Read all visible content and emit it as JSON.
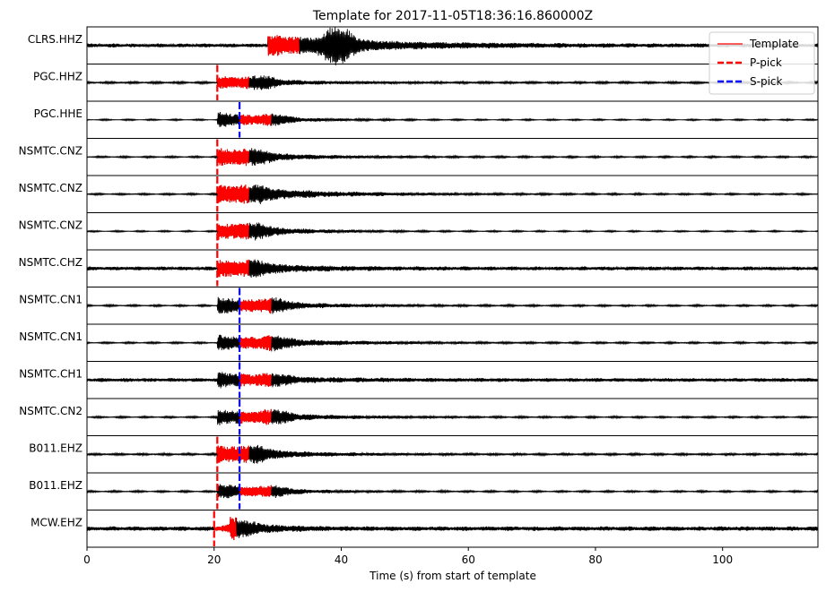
{
  "chart_data": {
    "type": "line",
    "title": "Template for 2017-11-05T18:36:16.860000Z",
    "xlabel": "Time (s) from start of template",
    "ylabel": "",
    "xlim": [
      0,
      115
    ],
    "x_ticks": [
      0,
      20,
      40,
      60,
      80,
      100
    ],
    "grid": false,
    "legend_position": "top-right",
    "legend": [
      {
        "label": "Template",
        "color": "#ff0000",
        "style": "solid"
      },
      {
        "label": "P-pick",
        "color": "#ff0000",
        "style": "dashed"
      },
      {
        "label": "S-pick",
        "color": "#0000ff",
        "style": "dashed"
      }
    ],
    "colors": {
      "waveform": "#000000",
      "template": "#ff0000",
      "p_pick": "#ff0000",
      "s_pick": "#0000ff"
    },
    "traces": [
      {
        "name": "CLRS.HHZ",
        "template_start": 28.4,
        "template_end": 33.4,
        "p_pick": null,
        "s_pick": null,
        "onset": 28.4,
        "noise": 0.1,
        "peak": 0.55,
        "decay": 16,
        "coda_peak": 39.5,
        "coda_amp": 0.9,
        "seed": 1
      },
      {
        "name": "PGC.HHZ",
        "template_start": 20.5,
        "template_end": 25.5,
        "p_pick": 20.5,
        "s_pick": null,
        "onset": 20.5,
        "noise": 0.05,
        "peak": 0.35,
        "decay": 9,
        "coda_peak": 27.5,
        "coda_amp": 0.25,
        "seed": 2
      },
      {
        "name": "PGC.HHE",
        "template_start": 24.0,
        "template_end": 29.0,
        "p_pick": null,
        "s_pick": 24.0,
        "onset": 20.5,
        "noise": 0.03,
        "peak": 0.45,
        "decay": 8,
        "coda_peak": 29.5,
        "coda_amp": 0.2,
        "seed": 3
      },
      {
        "name": "NSMTC.CNZ",
        "template_start": 20.5,
        "template_end": 25.5,
        "p_pick": 20.5,
        "s_pick": null,
        "onset": 20.5,
        "noise": 0.04,
        "peak": 0.5,
        "decay": 9,
        "coda_peak": 26.5,
        "coda_amp": 0.25,
        "seed": 4
      },
      {
        "name": "NSMTC.CNZ",
        "template_start": 20.5,
        "template_end": 25.5,
        "p_pick": 20.5,
        "s_pick": null,
        "onset": 20.5,
        "noise": 0.04,
        "peak": 0.55,
        "decay": 12,
        "coda_peak": 26.5,
        "coda_amp": 0.25,
        "seed": 5
      },
      {
        "name": "NSMTC.CNZ",
        "template_start": 20.5,
        "template_end": 25.5,
        "p_pick": 20.5,
        "s_pick": null,
        "onset": 20.5,
        "noise": 0.03,
        "peak": 0.5,
        "decay": 9,
        "coda_peak": 26.5,
        "coda_amp": 0.25,
        "seed": 6
      },
      {
        "name": "NSMTC.CHZ",
        "template_start": 20.5,
        "template_end": 25.5,
        "p_pick": 20.5,
        "s_pick": null,
        "onset": 20.5,
        "noise": 0.1,
        "peak": 0.45,
        "decay": 9,
        "coda_peak": 26.5,
        "coda_amp": 0.2,
        "seed": 7
      },
      {
        "name": "NSMTC.CN1",
        "template_start": 24.0,
        "template_end": 29.0,
        "p_pick": null,
        "s_pick": 24.0,
        "onset": 20.5,
        "noise": 0.04,
        "peak": 0.5,
        "decay": 10,
        "coda_peak": 29.5,
        "coda_amp": 0.25,
        "seed": 8
      },
      {
        "name": "NSMTC.CN1",
        "template_start": 24.0,
        "template_end": 29.0,
        "p_pick": null,
        "s_pick": 24.0,
        "onset": 20.5,
        "noise": 0.04,
        "peak": 0.45,
        "decay": 12,
        "coda_peak": 29.5,
        "coda_amp": 0.25,
        "seed": 9
      },
      {
        "name": "NSMTC.CH1",
        "template_start": 24.0,
        "template_end": 29.0,
        "p_pick": null,
        "s_pick": 24.0,
        "onset": 20.5,
        "noise": 0.1,
        "peak": 0.4,
        "decay": 9,
        "coda_peak": 29.5,
        "coda_amp": 0.2,
        "seed": 10
      },
      {
        "name": "NSMTC.CN2",
        "template_start": 24.0,
        "template_end": 29.0,
        "p_pick": null,
        "s_pick": 24.0,
        "onset": 20.5,
        "noise": 0.04,
        "peak": 0.45,
        "decay": 11,
        "coda_peak": 29.5,
        "coda_amp": 0.25,
        "seed": 11
      },
      {
        "name": "B011.EHZ",
        "template_start": 20.5,
        "template_end": 25.5,
        "p_pick": 20.5,
        "s_pick": 24.0,
        "onset": 20.5,
        "noise": 0.05,
        "peak": 0.5,
        "decay": 9,
        "coda_peak": 26.5,
        "coda_amp": 0.25,
        "seed": 12
      },
      {
        "name": "B011.EHZ",
        "template_start": 24.0,
        "template_end": 29.0,
        "p_pick": 20.5,
        "s_pick": 24.0,
        "onset": 20.5,
        "noise": 0.04,
        "peak": 0.45,
        "decay": 8,
        "coda_peak": 29.5,
        "coda_amp": 0.2,
        "seed": 13
      },
      {
        "name": "MCW.EHZ",
        "template_start": 20.0,
        "template_end": 23.5,
        "p_pick": 20.0,
        "s_pick": null,
        "onset": 22.5,
        "noise": 0.12,
        "peak": 0.45,
        "decay": 5,
        "coda_peak": 24.0,
        "coda_amp": 0.2,
        "seed": 14
      }
    ]
  }
}
